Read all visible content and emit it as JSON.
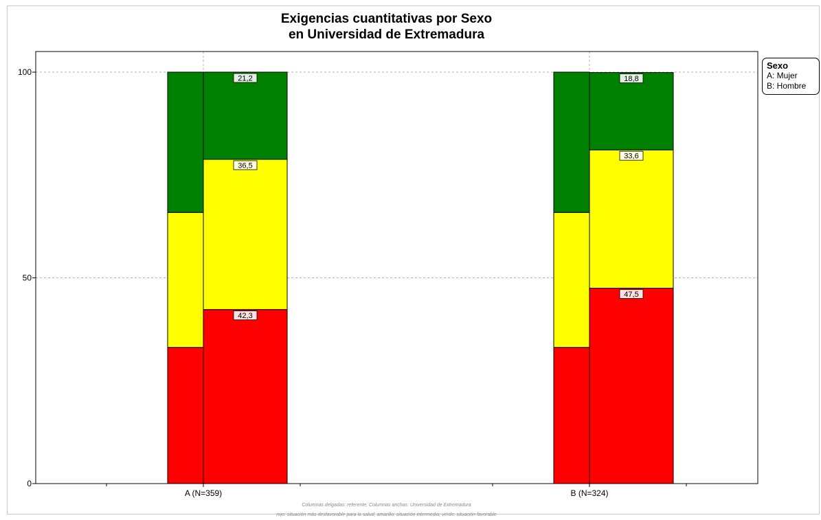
{
  "chart_data": {
    "type": "bar",
    "stacked": true,
    "title_line1": "Exigencias cuantitativas por Sexo",
    "title_line2": "en Universidad de Extremadura",
    "categories": [
      "A (N=359)",
      "B (N=324)"
    ],
    "ylim": [
      0,
      105
    ],
    "yticks": [
      0,
      50,
      100
    ],
    "ytick_labels": [
      "0",
      "50",
      "100"
    ],
    "grid": true,
    "colors": {
      "rojo": "#ff0000",
      "amarillo": "#ffff00",
      "verde": "#008000"
    },
    "referente": [
      {
        "rojo": 33.1,
        "amarillo": 32.8,
        "verde": 34.1
      },
      {
        "rojo": 33.1,
        "amarillo": 32.8,
        "verde": 34.1
      }
    ],
    "universidad": [
      {
        "rojo": 42.3,
        "amarillo": 36.5,
        "verde": 21.2
      },
      {
        "rojo": 47.5,
        "amarillo": 33.6,
        "verde": 18.8
      }
    ],
    "universidad_labels": [
      {
        "rojo": "42,3",
        "amarillo": "36,5",
        "verde": "21,2"
      },
      {
        "rojo": "47,5",
        "amarillo": "33,6",
        "verde": "18,8"
      }
    ]
  },
  "legend": {
    "title": "Sexo",
    "items": [
      "A: Mujer",
      "B: Hombre"
    ]
  },
  "notes": {
    "line1": "Columnas delgadas: referente; Columnas anchas: Universidad de Extremadura",
    "line2": "rojo: situación más desfavorable para la salud; amarillo: situación intermedia; verde: situación favorable"
  }
}
